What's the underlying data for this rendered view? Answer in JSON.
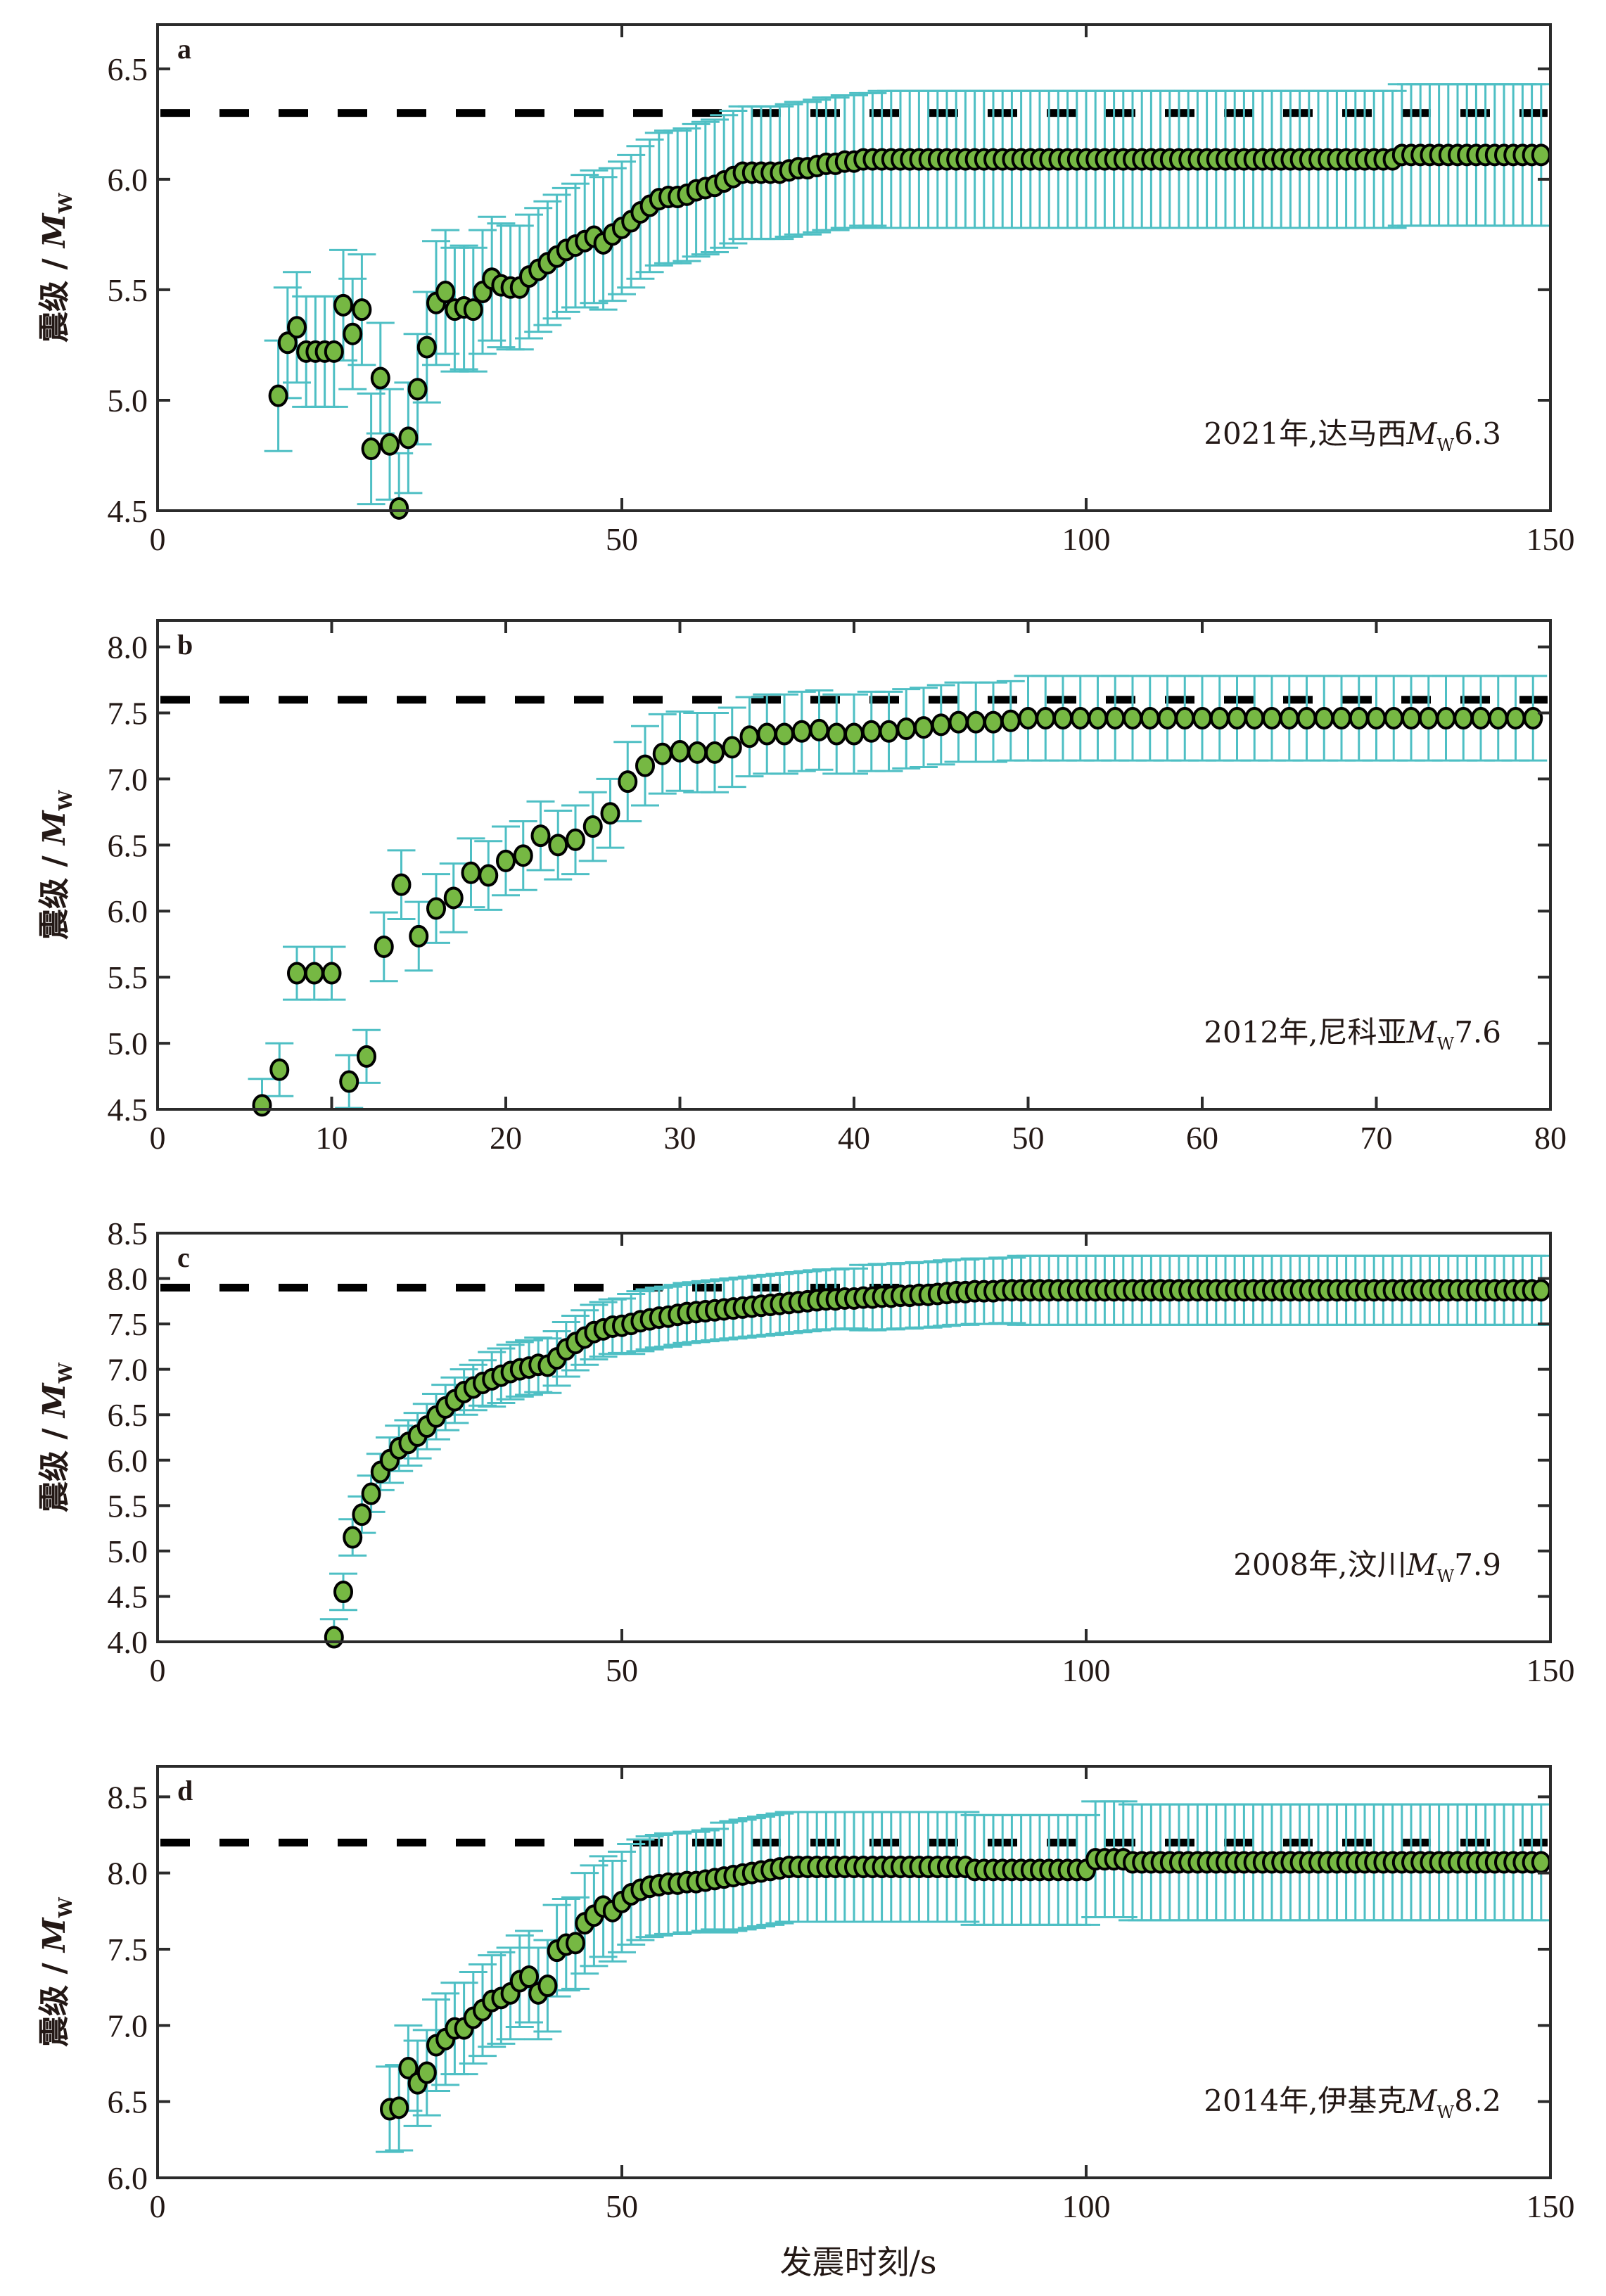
{
  "figure": {
    "x_axis_label": "发震时刻/s",
    "y_axis_label_prefix": "震级",
    "y_axis_label_symbol": "M",
    "y_axis_label_subscript": "W"
  },
  "colors": {
    "marker_fill": "#76b843",
    "marker_edge": "#000000",
    "error_bar": "#4ebfc4",
    "reference_line": "#000000",
    "axis": "#2b2b2b",
    "text": "#231815"
  },
  "chart_data": [
    {
      "panel": "a",
      "type": "scatter",
      "title": "",
      "annotation": {
        "year_place": "2021年,达马西",
        "mag_symbol": "M",
        "mag_sub": "W",
        "mag_value": "6.3"
      },
      "xlabel": "",
      "ylabel": "震级/Mw",
      "xlim": [
        0,
        150
      ],
      "ylim": [
        4.5,
        6.7
      ],
      "xticks": [
        0,
        50,
        100,
        150
      ],
      "xtick_labels": [
        "0",
        "50",
        "100",
        "150"
      ],
      "yticks": [
        4.5,
        5.0,
        5.5,
        6.0,
        6.5
      ],
      "ytick_labels": [
        "4.5",
        "5.0",
        "5.5",
        "6.0",
        "6.5"
      ],
      "reference_magnitude": 6.3,
      "x_start": 13,
      "x_step": 1,
      "y": [
        5.02,
        5.26,
        5.33,
        5.22,
        5.22,
        5.22,
        5.22,
        5.43,
        5.3,
        5.41,
        4.78,
        5.1,
        4.8,
        4.51,
        4.83,
        5.05,
        5.24,
        5.44,
        5.49,
        5.41,
        5.42,
        5.41,
        5.49,
        5.55,
        5.52,
        5.51,
        5.51,
        5.56,
        5.59,
        5.62,
        5.65,
        5.68,
        5.7,
        5.72,
        5.74,
        5.71,
        5.75,
        5.78,
        5.81,
        5.85,
        5.88,
        5.91,
        5.92,
        5.92,
        5.93,
        5.95,
        5.96,
        5.97,
        5.99,
        6.01,
        6.03,
        6.03,
        6.03,
        6.03,
        6.03,
        6.04,
        6.05,
        6.05,
        6.06,
        6.07,
        6.07,
        6.08,
        6.08,
        6.09,
        6.09,
        6.09,
        6.09,
        6.09,
        6.09,
        6.09,
        6.09,
        6.09,
        6.09,
        6.09,
        6.09,
        6.09,
        6.09,
        6.09,
        6.09,
        6.09,
        6.09,
        6.09,
        6.09,
        6.09,
        6.09,
        6.09,
        6.09,
        6.09,
        6.09,
        6.09,
        6.09,
        6.09,
        6.09,
        6.09,
        6.09,
        6.09,
        6.09,
        6.09,
        6.09,
        6.09,
        6.09,
        6.09,
        6.09,
        6.09,
        6.09,
        6.09,
        6.09,
        6.09,
        6.09,
        6.09,
        6.09,
        6.09,
        6.09,
        6.09,
        6.09,
        6.09,
        6.09,
        6.09,
        6.09,
        6.09,
        6.09,
        6.11,
        6.11,
        6.11,
        6.11,
        6.11,
        6.11,
        6.11,
        6.11,
        6.11,
        6.11,
        6.11,
        6.11,
        6.11,
        6.11,
        6.11,
        6.11
      ],
      "error_segments": [
        {
          "from": 13,
          "to": 29,
          "err": 0.25
        },
        {
          "from": 30,
          "to": 45,
          "err": 0.28
        },
        {
          "from": 46,
          "to": 77,
          "err": 0.3
        },
        {
          "from": 78,
          "to": 133,
          "err": 0.31
        },
        {
          "from": 134,
          "to": 149,
          "err": 0.32
        }
      ]
    },
    {
      "panel": "b",
      "type": "scatter",
      "title": "",
      "annotation": {
        "year_place": "2012年,尼科亚",
        "mag_symbol": "M",
        "mag_sub": "W",
        "mag_value": "7.6"
      },
      "xlabel": "",
      "ylabel": "震级/Mw",
      "xlim": [
        0,
        80
      ],
      "ylim": [
        4.5,
        8.2
      ],
      "xticks": [
        0,
        10,
        20,
        30,
        40,
        50,
        60,
        70,
        80
      ],
      "xtick_labels": [
        "0",
        "10",
        "20",
        "30",
        "40",
        "50",
        "60",
        "70",
        "80"
      ],
      "yticks": [
        4.5,
        5.0,
        5.5,
        6.0,
        6.5,
        7.0,
        7.5,
        8.0
      ],
      "ytick_labels": [
        "4.5",
        "5.0",
        "5.5",
        "6.0",
        "6.5",
        "7.0",
        "7.5",
        "8.0"
      ],
      "reference_magnitude": 7.6,
      "x_start": 6,
      "x_step": 1,
      "y": [
        4.53,
        4.8,
        5.53,
        5.53,
        5.53,
        4.71,
        4.9,
        5.73,
        6.2,
        5.81,
        6.02,
        6.1,
        6.29,
        6.27,
        6.38,
        6.42,
        6.57,
        6.5,
        6.54,
        6.64,
        6.74,
        6.98,
        7.1,
        7.19,
        7.21,
        7.2,
        7.2,
        7.24,
        7.32,
        7.34,
        7.34,
        7.36,
        7.37,
        7.34,
        7.34,
        7.36,
        7.36,
        7.38,
        7.39,
        7.41,
        7.43,
        7.43,
        7.43,
        7.44,
        7.46,
        7.46,
        7.46,
        7.46,
        7.46,
        7.46,
        7.46,
        7.46,
        7.46,
        7.46,
        7.46,
        7.46,
        7.46,
        7.46,
        7.46,
        7.46,
        7.46,
        7.46,
        7.46,
        7.46,
        7.46,
        7.46,
        7.46,
        7.46,
        7.46,
        7.46,
        7.46,
        7.46,
        7.46,
        7.46
      ],
      "error_segments": [
        {
          "from": 6,
          "to": 12,
          "err": 0.2
        },
        {
          "from": 13,
          "to": 26,
          "err": 0.26
        },
        {
          "from": 27,
          "to": 49,
          "err": 0.3
        },
        {
          "from": 50,
          "to": 79,
          "err": 0.32
        }
      ]
    },
    {
      "panel": "c",
      "type": "scatter",
      "title": "",
      "annotation": {
        "year_place": "2008年,汶川",
        "mag_symbol": "M",
        "mag_sub": "W",
        "mag_value": "7.9"
      },
      "xlabel": "",
      "ylabel": "震级/Mw",
      "xlim": [
        0,
        150
      ],
      "ylim": [
        4.0,
        8.5
      ],
      "xticks": [
        0,
        50,
        100,
        150
      ],
      "xtick_labels": [
        "0",
        "50",
        "100",
        "150"
      ],
      "yticks": [
        4.0,
        4.5,
        5.0,
        5.5,
        6.0,
        6.5,
        7.0,
        7.5,
        8.0,
        8.5
      ],
      "ytick_labels": [
        "4.0",
        "4.5",
        "5.0",
        "5.5",
        "6.0",
        "6.5",
        "7.0",
        "7.5",
        "8.0",
        "8.5"
      ],
      "reference_magnitude": 7.9,
      "x_start": 19,
      "x_step": 1,
      "y": [
        4.05,
        4.55,
        5.15,
        5.4,
        5.63,
        5.87,
        6.0,
        6.13,
        6.19,
        6.27,
        6.37,
        6.48,
        6.58,
        6.66,
        6.75,
        6.8,
        6.85,
        6.89,
        6.93,
        6.97,
        7.0,
        7.02,
        7.05,
        7.04,
        7.12,
        7.22,
        7.29,
        7.35,
        7.41,
        7.44,
        7.47,
        7.48,
        7.5,
        7.53,
        7.55,
        7.57,
        7.58,
        7.6,
        7.62,
        7.63,
        7.64,
        7.65,
        7.66,
        7.67,
        7.68,
        7.69,
        7.7,
        7.71,
        7.72,
        7.73,
        7.74,
        7.75,
        7.76,
        7.77,
        7.77,
        7.78,
        7.78,
        7.79,
        7.79,
        7.8,
        7.8,
        7.81,
        7.81,
        7.82,
        7.82,
        7.83,
        7.84,
        7.85,
        7.85,
        7.86,
        7.86,
        7.86,
        7.87,
        7.87,
        7.87,
        7.87,
        7.87,
        7.87,
        7.87,
        7.87,
        7.87,
        7.87,
        7.87,
        7.87,
        7.87,
        7.87,
        7.87,
        7.87,
        7.87,
        7.87,
        7.87,
        7.87,
        7.87,
        7.87,
        7.87,
        7.87,
        7.87,
        7.87,
        7.87,
        7.87,
        7.87,
        7.87,
        7.87,
        7.87,
        7.87,
        7.87,
        7.87,
        7.87,
        7.87,
        7.87,
        7.87,
        7.87,
        7.87,
        7.87,
        7.87,
        7.87,
        7.87,
        7.87,
        7.87,
        7.87,
        7.87,
        7.87,
        7.87,
        7.87,
        7.87,
        7.87,
        7.87,
        7.87,
        7.87,
        7.87,
        7.87
      ],
      "error_segments": [
        {
          "from": 19,
          "to": 24,
          "err": 0.2
        },
        {
          "from": 25,
          "to": 35,
          "err": 0.25
        },
        {
          "from": 36,
          "to": 50,
          "err": 0.3
        },
        {
          "from": 51,
          "to": 75,
          "err": 0.33
        },
        {
          "from": 76,
          "to": 92,
          "err": 0.36
        },
        {
          "from": 93,
          "to": 149,
          "err": 0.38
        }
      ]
    },
    {
      "panel": "d",
      "type": "scatter",
      "title": "",
      "annotation": {
        "year_place": "2014年,伊基克",
        "mag_symbol": "M",
        "mag_sub": "W",
        "mag_value": "8.2"
      },
      "xlabel": "发震时刻/s",
      "ylabel": "震级/Mw",
      "xlim": [
        0,
        150
      ],
      "ylim": [
        6.0,
        8.7
      ],
      "xticks": [
        0,
        50,
        100,
        150
      ],
      "xtick_labels": [
        "0",
        "50",
        "100",
        "150"
      ],
      "yticks": [
        6.0,
        6.5,
        7.0,
        7.5,
        8.0,
        8.5
      ],
      "ytick_labels": [
        "6.0",
        "6.5",
        "7.0",
        "7.5",
        "8.0",
        "8.5"
      ],
      "reference_magnitude": 8.2,
      "x_start": 25,
      "x_step": 1,
      "y": [
        6.45,
        6.46,
        6.72,
        6.62,
        6.69,
        6.87,
        6.91,
        6.98,
        6.98,
        7.05,
        7.1,
        7.16,
        7.18,
        7.21,
        7.29,
        7.32,
        7.21,
        7.26,
        7.49,
        7.53,
        7.54,
        7.67,
        7.72,
        7.78,
        7.75,
        7.81,
        7.86,
        7.89,
        7.91,
        7.92,
        7.93,
        7.93,
        7.94,
        7.94,
        7.95,
        7.96,
        7.97,
        7.98,
        7.99,
        8.0,
        8.01,
        8.02,
        8.03,
        8.04,
        8.04,
        8.04,
        8.04,
        8.04,
        8.04,
        8.04,
        8.04,
        8.04,
        8.04,
        8.04,
        8.04,
        8.04,
        8.04,
        8.04,
        8.04,
        8.04,
        8.04,
        8.04,
        8.04,
        8.02,
        8.02,
        8.02,
        8.02,
        8.02,
        8.02,
        8.02,
        8.02,
        8.02,
        8.02,
        8.02,
        8.02,
        8.02,
        8.09,
        8.09,
        8.09,
        8.09,
        8.07,
        8.07,
        8.07,
        8.07,
        8.07,
        8.07,
        8.07,
        8.07,
        8.07,
        8.07,
        8.07,
        8.07,
        8.07,
        8.07,
        8.07,
        8.07,
        8.07,
        8.07,
        8.07,
        8.07,
        8.07,
        8.07,
        8.07,
        8.07,
        8.07,
        8.07,
        8.07,
        8.07,
        8.07,
        8.07,
        8.07,
        8.07,
        8.07,
        8.07,
        8.07,
        8.07,
        8.07,
        8.07,
        8.07,
        8.07,
        8.07,
        8.07,
        8.07,
        8.07,
        8.07
      ],
      "error_segments": [
        {
          "from": 25,
          "to": 29,
          "err": 0.28
        },
        {
          "from": 30,
          "to": 45,
          "err": 0.3
        },
        {
          "from": 46,
          "to": 60,
          "err": 0.33
        },
        {
          "from": 61,
          "to": 100,
          "err": 0.36
        },
        {
          "from": 101,
          "to": 149,
          "err": 0.38
        }
      ]
    }
  ]
}
